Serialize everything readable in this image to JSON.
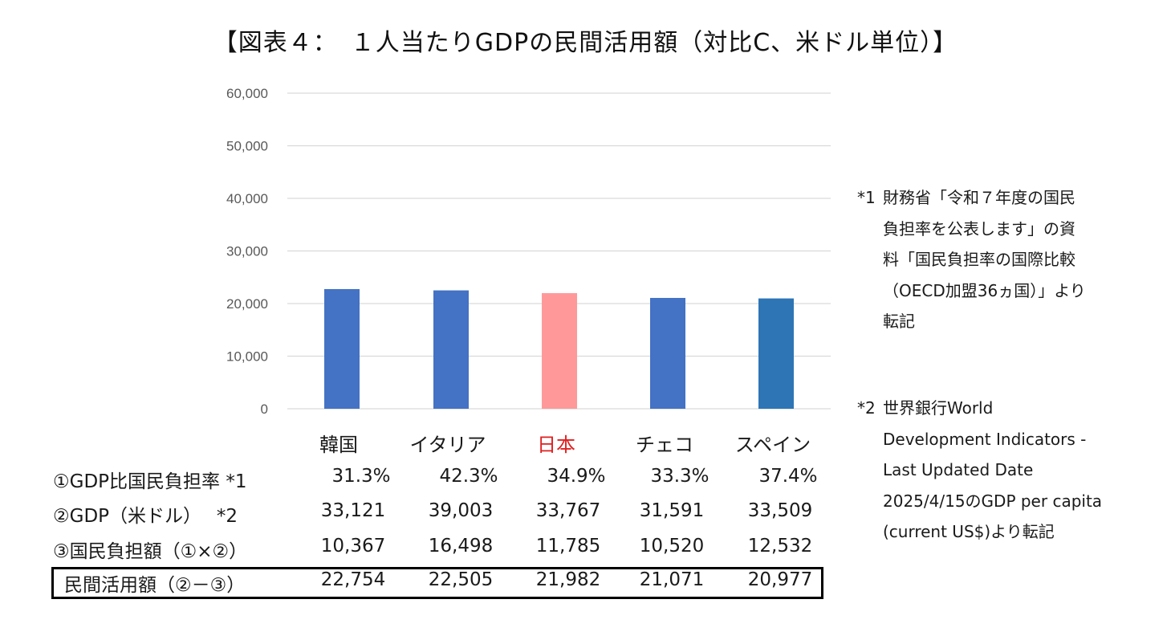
{
  "title": "【図表４：　１人当たりGDPの民間活用額（対比C、米ドル単位）】",
  "chart_data": {
    "type": "bar",
    "categories": [
      "韓国",
      "イタリア",
      "日本",
      "チェコ",
      "スペイン"
    ],
    "values": [
      22754,
      22505,
      21982,
      21071,
      20977
    ],
    "ylim": [
      0,
      60000
    ],
    "yticks": [
      "0",
      "10,000",
      "20,000",
      "30,000",
      "40,000",
      "50,000",
      "60,000"
    ],
    "ytick_values": [
      0,
      10000,
      20000,
      30000,
      40000,
      50000,
      60000
    ],
    "grid": true,
    "colors": [
      "#4472C4",
      "#4472C4",
      "#FF9999",
      "#4472C4",
      "#2E75B6"
    ],
    "highlight_category_color": "#E02020"
  },
  "table": {
    "rows": [
      {
        "label": "①GDP比国民負担率 *1",
        "values": [
          "31.3%",
          "42.3%",
          "34.9%",
          "33.3%",
          "37.4%"
        ]
      },
      {
        "label": "②GDP（米ドル）　 *2",
        "values": [
          "33,121",
          "39,003",
          "33,767",
          "31,591",
          "33,509"
        ]
      },
      {
        "label": "③国民負担額（①×②）",
        "values": [
          "10,367",
          "16,498",
          "11,785",
          "10,520",
          "12,532"
        ]
      },
      {
        "label": "民間活用額（②－③）",
        "values": [
          "22,754",
          "22,505",
          "21,982",
          "21,071",
          "20,977"
        ]
      }
    ]
  },
  "notes": [
    {
      "tag": "*1",
      "lines": [
        "財務省「令和７年度の国民",
        "負担率を公表します」の資",
        "料「国民負担率の国際比較",
        "（OECD加盟36ヵ国）」より",
        "転記"
      ]
    },
    {
      "tag": "*2",
      "lines": [
        "世界銀行World",
        "Development Indicators -",
        "Last Updated Date",
        "2025/4/15のGDP per capita",
        "(current US$)より転記"
      ]
    }
  ]
}
